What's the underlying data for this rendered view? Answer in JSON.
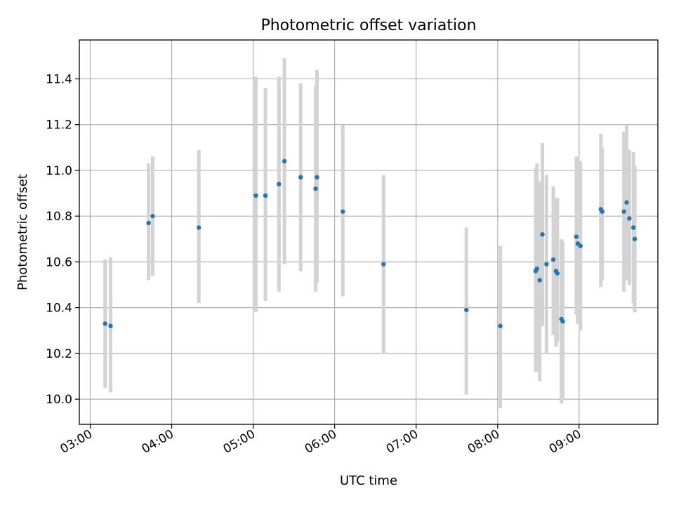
{
  "chart_data": {
    "type": "scatter",
    "title": "Photometric offset variation",
    "xlabel": "UTC time",
    "ylabel": "Photometric offset",
    "grid": true,
    "x_type": "time",
    "xlim": [
      "02:52",
      "09:58"
    ],
    "ylim": [
      9.89,
      11.57
    ],
    "x_ticks": [
      "03:00",
      "04:00",
      "05:00",
      "06:00",
      "07:00",
      "08:00",
      "09:00"
    ],
    "y_ticks": [
      "10.0",
      "10.2",
      "10.4",
      "10.6",
      "10.8",
      "11.0",
      "11.2",
      "11.4"
    ],
    "colors": {
      "point": "#1f77b4",
      "errorbar": "#d3d3d3"
    },
    "series": [
      {
        "points": [
          {
            "x": "03:11",
            "y": 10.33,
            "y_low": 10.05,
            "y_high": 10.61
          },
          {
            "x": "03:15",
            "y": 10.32,
            "y_low": 10.03,
            "y_high": 10.62
          },
          {
            "x": "03:43",
            "y": 10.77,
            "y_low": 10.52,
            "y_high": 11.03
          },
          {
            "x": "03:46",
            "y": 10.8,
            "y_low": 10.54,
            "y_high": 11.06
          },
          {
            "x": "04:20",
            "y": 10.75,
            "y_low": 10.42,
            "y_high": 11.09
          },
          {
            "x": "05:02",
            "y": 10.89,
            "y_low": 10.38,
            "y_high": 11.41
          },
          {
            "x": "05:09",
            "y": 10.89,
            "y_low": 10.43,
            "y_high": 11.36
          },
          {
            "x": "05:19",
            "y": 10.94,
            "y_low": 10.47,
            "y_high": 11.41
          },
          {
            "x": "05:23",
            "y": 11.04,
            "y_low": 10.59,
            "y_high": 11.49
          },
          {
            "x": "05:35",
            "y": 10.97,
            "y_low": 10.56,
            "y_high": 11.38
          },
          {
            "x": "05:46",
            "y": 10.92,
            "y_low": 10.47,
            "y_high": 11.37
          },
          {
            "x": "05:47",
            "y": 10.97,
            "y_low": 10.51,
            "y_high": 11.44
          },
          {
            "x": "06:06",
            "y": 10.82,
            "y_low": 10.45,
            "y_high": 11.2
          },
          {
            "x": "06:36",
            "y": 10.59,
            "y_low": 10.2,
            "y_high": 10.98
          },
          {
            "x": "07:37",
            "y": 10.39,
            "y_low": 10.02,
            "y_high": 10.75
          },
          {
            "x": "08:02",
            "y": 10.32,
            "y_low": 9.96,
            "y_high": 10.67
          },
          {
            "x": "08:28",
            "y": 10.56,
            "y_low": 10.12,
            "y_high": 11.01
          },
          {
            "x": "08:29",
            "y": 10.57,
            "y_low": 10.12,
            "y_high": 11.03
          },
          {
            "x": "08:31",
            "y": 10.52,
            "y_low": 10.08,
            "y_high": 10.95
          },
          {
            "x": "08:33",
            "y": 10.72,
            "y_low": 10.32,
            "y_high": 11.12
          },
          {
            "x": "08:36",
            "y": 10.59,
            "y_low": 10.2,
            "y_high": 10.98
          },
          {
            "x": "08:41",
            "y": 10.61,
            "y_low": 10.28,
            "y_high": 10.93
          },
          {
            "x": "08:43",
            "y": 10.56,
            "y_low": 10.23,
            "y_high": 10.88
          },
          {
            "x": "08:44",
            "y": 10.55,
            "y_low": 10.25,
            "y_high": 10.88
          },
          {
            "x": "08:47",
            "y": 10.35,
            "y_low": 9.98,
            "y_high": 10.7
          },
          {
            "x": "08:48",
            "y": 10.34,
            "y_low": 10.0,
            "y_high": 10.69
          },
          {
            "x": "08:58",
            "y": 10.71,
            "y_low": 10.37,
            "y_high": 11.06
          },
          {
            "x": "08:59",
            "y": 10.68,
            "y_low": 10.33,
            "y_high": 11.06
          },
          {
            "x": "09:01",
            "y": 10.67,
            "y_low": 10.3,
            "y_high": 11.04
          },
          {
            "x": "09:16",
            "y": 10.83,
            "y_low": 10.49,
            "y_high": 11.16
          },
          {
            "x": "09:17",
            "y": 10.82,
            "y_low": 10.52,
            "y_high": 11.1
          },
          {
            "x": "09:33",
            "y": 10.82,
            "y_low": 10.47,
            "y_high": 11.17
          },
          {
            "x": "09:35",
            "y": 10.86,
            "y_low": 10.52,
            "y_high": 11.2
          },
          {
            "x": "09:37",
            "y": 10.79,
            "y_low": 10.5,
            "y_high": 11.09
          },
          {
            "x": "09:40",
            "y": 10.75,
            "y_low": 10.42,
            "y_high": 11.08
          },
          {
            "x": "09:41",
            "y": 10.7,
            "y_low": 10.38,
            "y_high": 11.02
          }
        ]
      }
    ]
  }
}
